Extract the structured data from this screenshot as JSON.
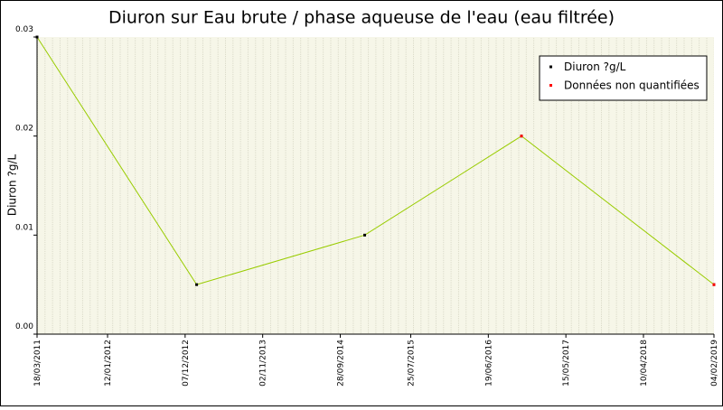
{
  "chart_data": {
    "type": "line",
    "title": "Diuron sur Eau brute / phase aqueuse de l'eau (eau filtrée)",
    "y_label": "Diuron ?g/L",
    "x": [
      "2011-03-18",
      "2013-01-25",
      "2015-01-10",
      "2016-11-07",
      "2019-02-04"
    ],
    "series": [
      {
        "name": "Diuron ?g/L",
        "color": "#99cc00",
        "marker_color": "#000000",
        "values": [
          0.03,
          0.005,
          0.01,
          0.02,
          0.005
        ]
      },
      {
        "name": "Données non quantifiées",
        "color": "#ff0000",
        "values": [
          null,
          null,
          null,
          0.02,
          0.005
        ]
      }
    ],
    "xlim": [
      "2011-03-18",
      "2019-02-04"
    ],
    "xticks": [
      {
        "value": "2011-03-18",
        "label": "18/03/2011"
      },
      {
        "value": "2012-01-12",
        "label": "12/01/2012"
      },
      {
        "value": "2012-12-07",
        "label": "07/12/2012"
      },
      {
        "value": "2013-11-02",
        "label": "02/11/2013"
      },
      {
        "value": "2014-09-28",
        "label": "28/09/2014"
      },
      {
        "value": "2015-07-25",
        "label": "25/07/2015"
      },
      {
        "value": "2016-06-19",
        "label": "19/06/2016"
      },
      {
        "value": "2017-05-15",
        "label": "15/05/2017"
      },
      {
        "value": "2018-04-10",
        "label": "10/04/2018"
      },
      {
        "value": "2019-02-04",
        "label": "04/02/2019"
      }
    ],
    "ylim": [
      0,
      0.03
    ],
    "yticks": [
      {
        "value": 0,
        "label": "0.00"
      },
      0.01,
      0.02,
      0.03
    ],
    "legend": "top-right"
  }
}
